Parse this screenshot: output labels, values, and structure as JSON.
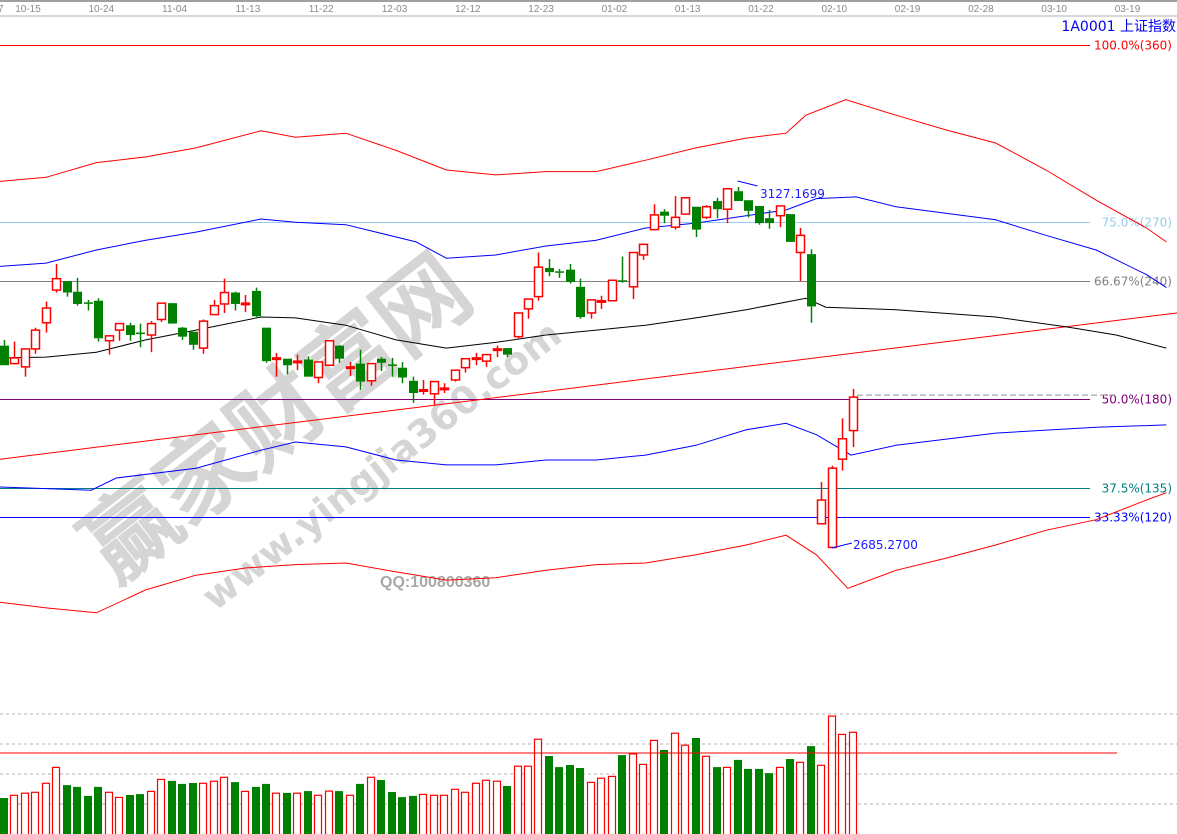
{
  "header": {
    "symbol_title": "1A0001  上证指数"
  },
  "watermark": {
    "brand": "赢家财富网",
    "site": "www.yingjia360.com",
    "qq": "QQ:100800360"
  },
  "chart_data": {
    "type": "candlestick",
    "title": "1A0001  上证指数",
    "date_ticks": [
      "7",
      "10-15",
      "10-24",
      "11-04",
      "11-13",
      "11-22",
      "12-03",
      "12-12",
      "12-23",
      "01-02",
      "01-13",
      "01-22",
      "02-10",
      "02-19",
      "02-28",
      "03-10",
      "03-19"
    ],
    "colors": {
      "up": "#ff0000",
      "down": "#008000",
      "upper_band": "#ff0000",
      "mid_band": "#0000ff",
      "ma": "#000000",
      "trendline": "#ff0000"
    },
    "candles_ohlc": [
      [
        2933,
        2940,
        2909,
        2909
      ],
      [
        2911,
        2938,
        2911,
        2918
      ],
      [
        2907,
        2929,
        2895,
        2929
      ],
      [
        2929,
        2955,
        2923,
        2952
      ],
      [
        2961,
        2987,
        2949,
        2979
      ],
      [
        3001,
        3033,
        2998,
        3015
      ],
      [
        3012,
        3012,
        2993,
        2998
      ],
      [
        2999,
        3016,
        2982,
        2984
      ],
      [
        2986,
        2989,
        2976,
        2985
      ],
      [
        2988,
        2991,
        2938,
        2942
      ],
      [
        2939,
        2945,
        2922,
        2945
      ],
      [
        2952,
        2960,
        2939,
        2960
      ],
      [
        2958,
        2961,
        2939,
        2946
      ],
      [
        2949,
        2960,
        2931,
        2948
      ],
      [
        2946,
        2963,
        2925,
        2960
      ],
      [
        2965,
        2985,
        2962,
        2985
      ],
      [
        2985,
        2985,
        2960,
        2960
      ],
      [
        2955,
        2956,
        2940,
        2944
      ],
      [
        2950,
        2950,
        2928,
        2934
      ],
      [
        2930,
        2965,
        2923,
        2963
      ],
      [
        2971,
        2989,
        2971,
        2982
      ],
      [
        2984,
        3015,
        2973,
        2998
      ],
      [
        2998,
        2999,
        2976,
        2984
      ],
      [
        2984,
        2995,
        2974,
        2985
      ],
      [
        3000,
        3004,
        2968,
        2969
      ],
      [
        2955,
        2955,
        2912,
        2914
      ],
      [
        2917,
        2924,
        2895,
        2918
      ],
      [
        2917,
        2917,
        2898,
        2909
      ],
      [
        2913,
        2922,
        2903,
        2914
      ],
      [
        2916,
        2920,
        2895,
        2895
      ],
      [
        2894,
        2913,
        2887,
        2913
      ],
      [
        2909,
        2939,
        2908,
        2939
      ],
      [
        2933,
        2934,
        2912,
        2917
      ],
      [
        2906,
        2913,
        2896,
        2907
      ],
      [
        2911,
        2928,
        2879,
        2889
      ],
      [
        2890,
        2911,
        2884,
        2911
      ],
      [
        2917,
        2919,
        2902,
        2912
      ],
      [
        2910,
        2918,
        2895,
        2909
      ],
      [
        2906,
        2913,
        2887,
        2894
      ],
      [
        2890,
        2895,
        2863,
        2875
      ],
      [
        2878,
        2891,
        2873,
        2879
      ],
      [
        2874,
        2889,
        2860,
        2889
      ],
      [
        2880,
        2887,
        2875,
        2881
      ],
      [
        2891,
        2903,
        2889,
        2903
      ],
      [
        2906,
        2917,
        2900,
        2917
      ],
      [
        2917,
        2924,
        2909,
        2918
      ],
      [
        2914,
        2922,
        2907,
        2922
      ],
      [
        2928,
        2933,
        2919,
        2929
      ],
      [
        2930,
        2930,
        2919,
        2922
      ],
      [
        2944,
        2974,
        2942,
        2973
      ],
      [
        2978,
        2990,
        2966,
        2990
      ],
      [
        2993,
        3047,
        2988,
        3029
      ],
      [
        3028,
        3039,
        3018,
        3023
      ],
      [
        3024,
        3027,
        3016,
        3023
      ],
      [
        3026,
        3033,
        3009,
        3011
      ],
      [
        3005,
        3015,
        2966,
        2968
      ],
      [
        2973,
        2989,
        2966,
        2989
      ],
      [
        2987,
        2994,
        2978,
        2988
      ],
      [
        2988,
        3013,
        2988,
        3013
      ],
      [
        3013,
        3042,
        3010,
        3012
      ],
      [
        3005,
        3047,
        2990,
        3047
      ],
      [
        3044,
        3057,
        3038,
        3057
      ],
      [
        3075,
        3106,
        3075,
        3093
      ],
      [
        3097,
        3100,
        3083,
        3092
      ],
      [
        3078,
        3116,
        3075,
        3090
      ],
      [
        3094,
        3114,
        3094,
        3114
      ],
      [
        3103,
        3103,
        3066,
        3075
      ],
      [
        3090,
        3105,
        3088,
        3103
      ],
      [
        3110,
        3114,
        3089,
        3100
      ],
      [
        3100,
        3125,
        3083,
        3125
      ],
      [
        3122,
        3127.17,
        3110,
        3110
      ],
      [
        3111,
        3111,
        3090,
        3098
      ],
      [
        3104,
        3104,
        3081,
        3083
      ],
      [
        3089,
        3099,
        3076,
        3083
      ],
      [
        3092,
        3104,
        3078,
        3104
      ],
      [
        3094,
        3094,
        3060,
        3060
      ],
      [
        3047,
        3077,
        3012,
        3068
      ],
      [
        3045,
        3051,
        2961,
        2981
      ],
      [
        2715,
        2766,
        2715,
        2744
      ],
      [
        2686,
        2786,
        2685.27,
        2783
      ],
      [
        2794,
        2844,
        2780,
        2819
      ],
      [
        2829,
        2880,
        2809,
        2870
      ]
    ],
    "volume": [
      1.2,
      1.29,
      1.36,
      1.39,
      1.69,
      2.22,
      1.63,
      1.57,
      1.27,
      1.57,
      1.39,
      1.22,
      1.3,
      1.33,
      1.42,
      1.82,
      1.77,
      1.67,
      1.7,
      1.69,
      1.76,
      1.89,
      1.73,
      1.42,
      1.57,
      1.67,
      1.36,
      1.37,
      1.36,
      1.43,
      1.29,
      1.43,
      1.43,
      1.29,
      1.67,
      1.89,
      1.8,
      1.4,
      1.23,
      1.27,
      1.32,
      1.29,
      1.29,
      1.49,
      1.39,
      1.69,
      1.79,
      1.76,
      1.6,
      2.26,
      2.26,
      3.16,
      2.6,
      2.23,
      2.3,
      2.2,
      1.72,
      1.86,
      1.92,
      2.63,
      2.67,
      2.32,
      3.12,
      2.8,
      3.36,
      2.96,
      3.2,
      2.59,
      2.23,
      2.22,
      2.47,
      2.17,
      2.17,
      2.03,
      2.22,
      2.5,
      2.39,
      2.93,
      2.29,
      3.93,
      3.32,
      3.39
    ],
    "volume_ma_level": 2.7,
    "volume_grid": [
      1,
      2,
      3,
      4
    ],
    "high_marker": {
      "label": "3127.1699",
      "value": 3127.17
    },
    "low_marker": {
      "label": "2685.2700",
      "value": 2685.27
    },
    "last_close_ref": 2870,
    "fib_levels": [
      {
        "label": "100.0%(360)",
        "value": 360,
        "color": "#ff0000"
      },
      {
        "label": "75.0%(270)",
        "value": 270,
        "color": "#99ccee"
      },
      {
        "label": "66.67%(240)",
        "value": 240,
        "color": "#808080"
      },
      {
        "label": "50.0%(180)",
        "value": 180,
        "color": "#800080"
      },
      {
        "label": "37.5%(135)",
        "value": 135,
        "color": "#008080"
      },
      {
        "label": "33.33%(120)",
        "value": 120,
        "color": "#0000ff"
      }
    ],
    "trendline": [
      [
        0,
        2794
      ],
      [
        112,
        2973
      ]
    ],
    "curves": {
      "upper_band": [
        [
          0,
          3134
        ],
        [
          4.4,
          3139
        ],
        [
          9.2,
          3157
        ],
        [
          13.9,
          3164
        ],
        [
          18.7,
          3175
        ],
        [
          24.9,
          3196
        ],
        [
          28.2,
          3188
        ],
        [
          33,
          3193
        ],
        [
          37.8,
          3172
        ],
        [
          42.6,
          3148
        ],
        [
          47.3,
          3142
        ],
        [
          52.1,
          3146
        ],
        [
          56.9,
          3146
        ],
        [
          61.6,
          3160
        ],
        [
          66.4,
          3175
        ],
        [
          71.2,
          3187
        ],
        [
          75,
          3193
        ],
        [
          76.9,
          3215
        ],
        [
          80.7,
          3234
        ],
        [
          85.5,
          3215
        ],
        [
          90.3,
          3197
        ],
        [
          95,
          3181
        ],
        [
          99.8,
          3148
        ],
        [
          104.6,
          3111
        ],
        [
          109.4,
          3077
        ],
        [
          111.3,
          3060
        ]
      ],
      "upper_mid": [
        [
          0,
          3030
        ],
        [
          4.4,
          3034
        ],
        [
          9.2,
          3050
        ],
        [
          13.9,
          3062
        ],
        [
          18.7,
          3072
        ],
        [
          24.9,
          3088
        ],
        [
          28.2,
          3084
        ],
        [
          33,
          3081
        ],
        [
          39.7,
          3060
        ],
        [
          42.6,
          3040
        ],
        [
          47.3,
          3044
        ],
        [
          52.1,
          3055
        ],
        [
          56.9,
          3062
        ],
        [
          61.6,
          3077
        ],
        [
          66.4,
          3083
        ],
        [
          71.2,
          3092
        ],
        [
          75,
          3099
        ],
        [
          77.9,
          3113
        ],
        [
          81.7,
          3115
        ],
        [
          85.5,
          3103
        ],
        [
          95,
          3087
        ],
        [
          99.8,
          3068
        ],
        [
          104.6,
          3050
        ],
        [
          109.4,
          3020
        ],
        [
          111.3,
          3004
        ]
      ],
      "ma": [
        [
          0,
          2918
        ],
        [
          4.4,
          2919
        ],
        [
          9.2,
          2925
        ],
        [
          13.9,
          2940
        ],
        [
          18.7,
          2952
        ],
        [
          24.9,
          2968
        ],
        [
          28.2,
          2967
        ],
        [
          33,
          2958
        ],
        [
          37.8,
          2940
        ],
        [
          42.6,
          2930
        ],
        [
          47.3,
          2937
        ],
        [
          52.1,
          2946
        ],
        [
          56.9,
          2952
        ],
        [
          61.6,
          2958
        ],
        [
          66.4,
          2967
        ],
        [
          71.2,
          2977
        ],
        [
          76.9,
          2991
        ],
        [
          78.8,
          2980
        ],
        [
          85.5,
          2977
        ],
        [
          95,
          2968
        ],
        [
          101.7,
          2956
        ],
        [
          106.5,
          2946
        ],
        [
          111.3,
          2930
        ]
      ],
      "lower_mid": [
        [
          0,
          2760
        ],
        [
          4.4,
          2758
        ],
        [
          8.7,
          2756
        ],
        [
          11.1,
          2771
        ],
        [
          18.7,
          2783
        ],
        [
          24.9,
          2805
        ],
        [
          28.2,
          2815
        ],
        [
          33,
          2809
        ],
        [
          37.8,
          2793
        ],
        [
          42.6,
          2787
        ],
        [
          47.3,
          2787
        ],
        [
          52.1,
          2793
        ],
        [
          56.9,
          2793
        ],
        [
          61.6,
          2799
        ],
        [
          66.4,
          2811
        ],
        [
          71.2,
          2830
        ],
        [
          75,
          2838
        ],
        [
          77.9,
          2824
        ],
        [
          81.2,
          2799
        ],
        [
          85.5,
          2811
        ],
        [
          95,
          2826
        ],
        [
          104.6,
          2833
        ],
        [
          111.3,
          2836
        ]
      ],
      "lower_band": [
        [
          0,
          2619
        ],
        [
          4.4,
          2612
        ],
        [
          9.2,
          2606
        ],
        [
          13.9,
          2634
        ],
        [
          18.7,
          2652
        ],
        [
          23.5,
          2661
        ],
        [
          28.2,
          2665
        ],
        [
          33,
          2667
        ],
        [
          37.8,
          2656
        ],
        [
          42.6,
          2646
        ],
        [
          47.3,
          2649
        ],
        [
          52.1,
          2658
        ],
        [
          56.9,
          2665
        ],
        [
          61.6,
          2667
        ],
        [
          66.4,
          2677
        ],
        [
          71.2,
          2689
        ],
        [
          75,
          2701
        ],
        [
          77.9,
          2677
        ],
        [
          80.9,
          2636
        ],
        [
          85.5,
          2658
        ],
        [
          90.3,
          2673
        ],
        [
          95,
          2689
        ],
        [
          99.8,
          2707
        ],
        [
          104.6,
          2720
        ],
        [
          109.4,
          2744
        ],
        [
          111.3,
          2753
        ]
      ]
    }
  }
}
